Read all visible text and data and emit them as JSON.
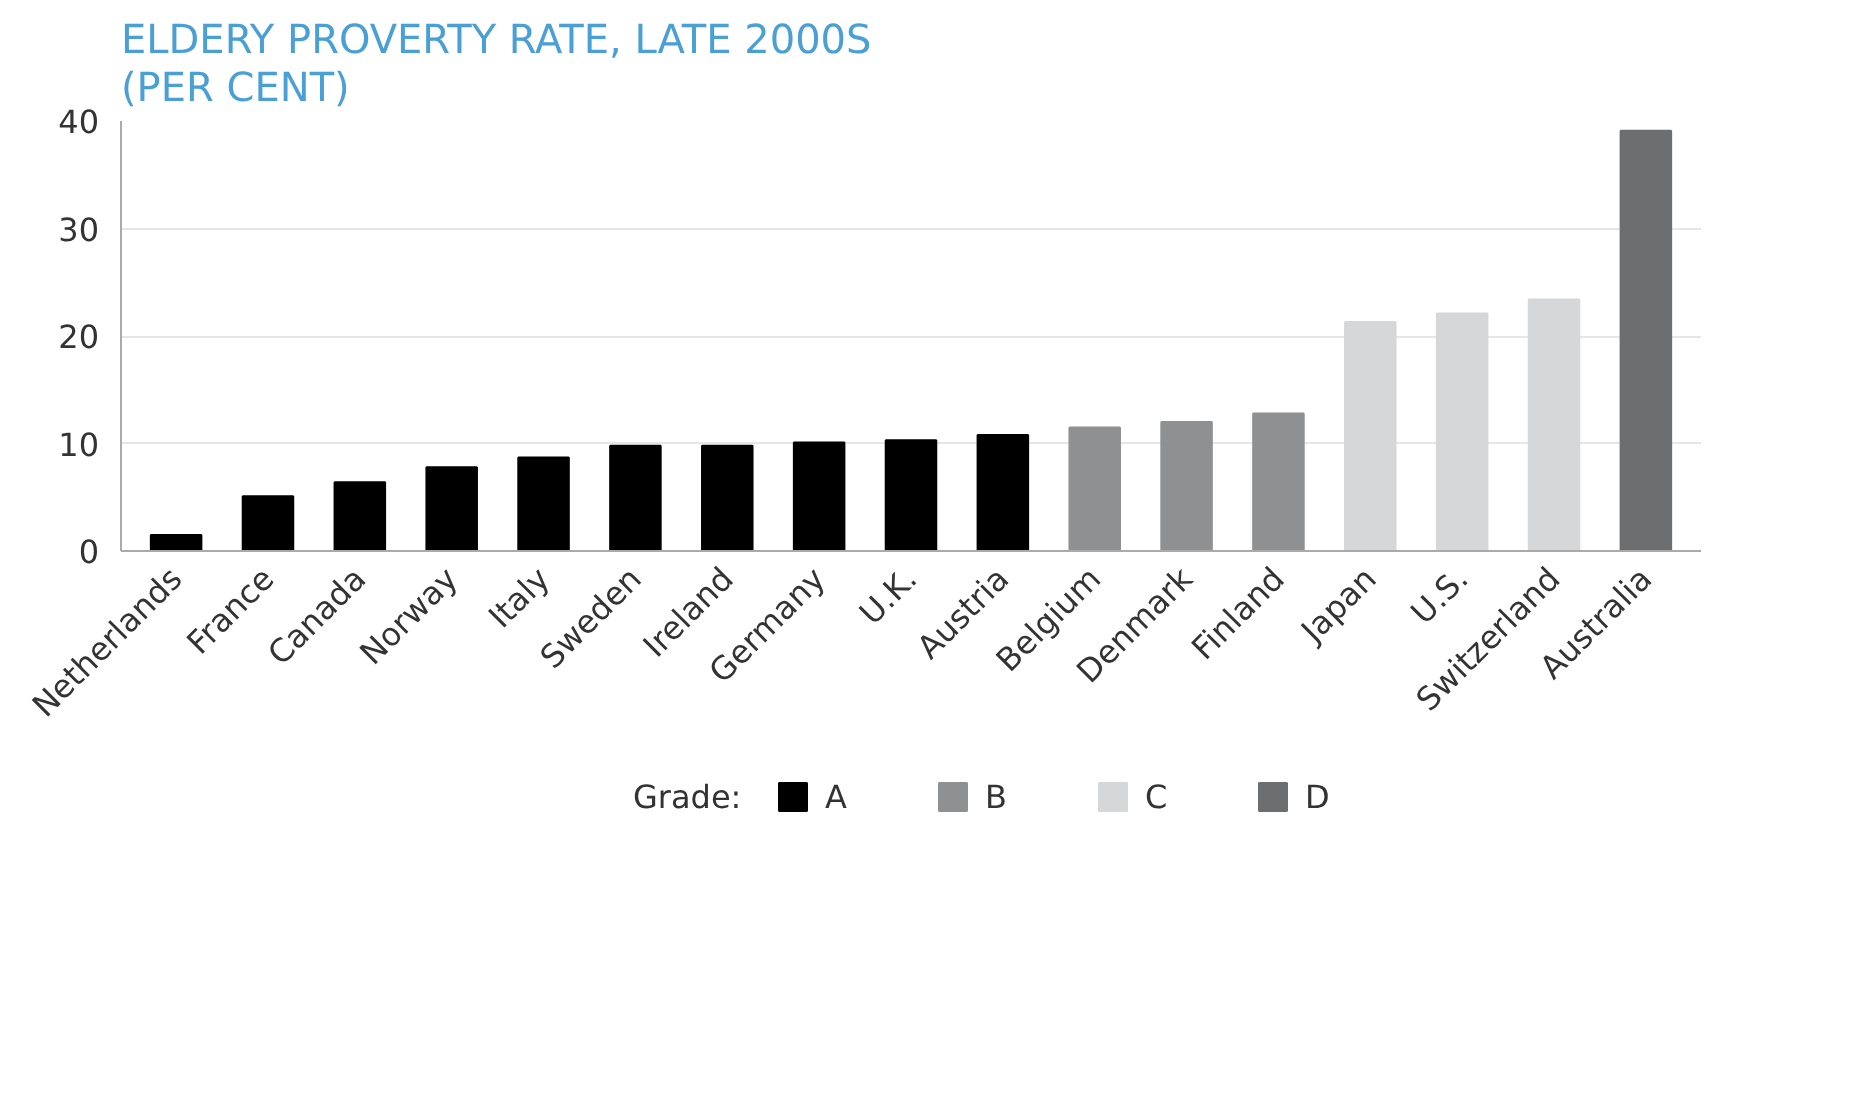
{
  "chart_data": {
    "type": "bar",
    "title": "ELDERY PROVERTY RATE, LATE 2000S\n(PER CENT)",
    "categories": [
      "Netherlands",
      "France",
      "Canada",
      "Norway",
      "Italy",
      "Sweden",
      "Ireland",
      "Germany",
      "U.K.",
      "Austria",
      "Belgium",
      "Denmark",
      "Finland",
      "Japan",
      "U.S.",
      "Switzerland",
      "Australia"
    ],
    "stacked": true,
    "series": [
      {
        "name": "A",
        "color": "#000000",
        "values": [
          1.5,
          5.1,
          6.4,
          7.8,
          8.7,
          9.8,
          9.8,
          10.1,
          10.3,
          10.8,
          null,
          null,
          null,
          null,
          null,
          null,
          null
        ]
      },
      {
        "name": "B",
        "color": "#8f9092",
        "values": [
          null,
          null,
          null,
          null,
          null,
          null,
          null,
          null,
          null,
          null,
          11.5,
          12.0,
          12.8,
          null,
          null,
          null,
          null
        ]
      },
      {
        "name": "C",
        "color": "#d6d7d9",
        "values": [
          null,
          null,
          null,
          null,
          null,
          null,
          null,
          null,
          null,
          null,
          null,
          null,
          null,
          21.3,
          22.1,
          23.4,
          null
        ]
      },
      {
        "name": "D",
        "color": "#6d6e70",
        "values": [
          null,
          null,
          null,
          null,
          null,
          null,
          null,
          null,
          null,
          null,
          null,
          null,
          null,
          null,
          null,
          null,
          39.1
        ]
      }
    ],
    "legend_title": "Grade:",
    "legend": "bottom",
    "ylim": [
      0,
      40
    ],
    "yticks": [
      0,
      10,
      20,
      30,
      40
    ],
    "grid": "y"
  }
}
